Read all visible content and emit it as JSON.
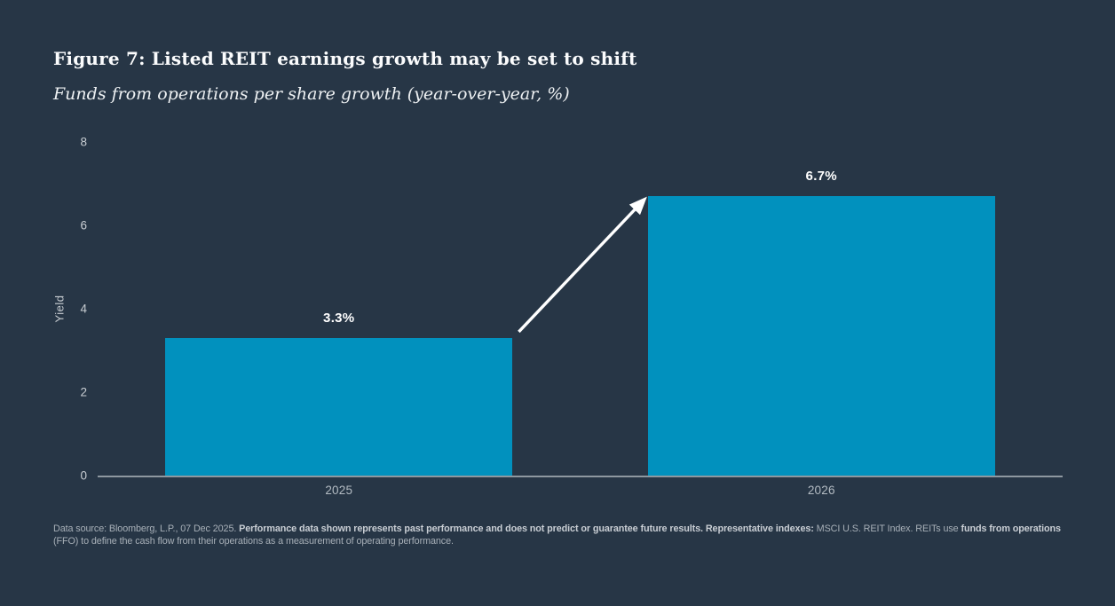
{
  "header": {
    "title": "Figure 7: Listed REIT earnings growth may be set to shift",
    "subtitle": "Funds from operations per share growth (year-over-year, %)"
  },
  "chart_data": {
    "type": "bar",
    "categories": [
      "2025",
      "2026"
    ],
    "values": [
      3.3,
      6.7
    ],
    "value_labels": [
      "3.3%",
      "6.7%"
    ],
    "title": "Figure 7: Listed REIT earnings growth may be set to shift",
    "subtitle": "Funds from operations per share growth (year-over-year, %)",
    "xlabel": "",
    "ylabel": "Yield",
    "ylim": [
      0,
      8
    ],
    "yticks": [
      0,
      2,
      4,
      6,
      8
    ],
    "grid": false,
    "legend": "none",
    "bar_color": "#0191be",
    "annotation": {
      "type": "arrow",
      "from": "top of 2025 bar",
      "to": "top of 2026 bar",
      "color": "#ffffff"
    }
  },
  "colors": {
    "background": "#273646",
    "axis_line": "#8e98a0",
    "tick_text": "#c8cdd2",
    "bar": "#0191be",
    "arrow": "#ffffff"
  },
  "footnote": {
    "segments": [
      {
        "text": "Data source: Bloomberg, L.P., 07 Dec 2025. ",
        "bold": false
      },
      {
        "text": "Performance data shown represents past performance and does not predict or guarantee future results. Representative indexes: ",
        "bold": true
      },
      {
        "text": "MSCI U.S. REIT Index. REITs use ",
        "bold": false
      },
      {
        "text": "funds from operations",
        "bold": true
      },
      {
        "text": " (FFO) to define the cash flow from their operations as a measurement of operating performance.",
        "bold": false
      }
    ]
  }
}
